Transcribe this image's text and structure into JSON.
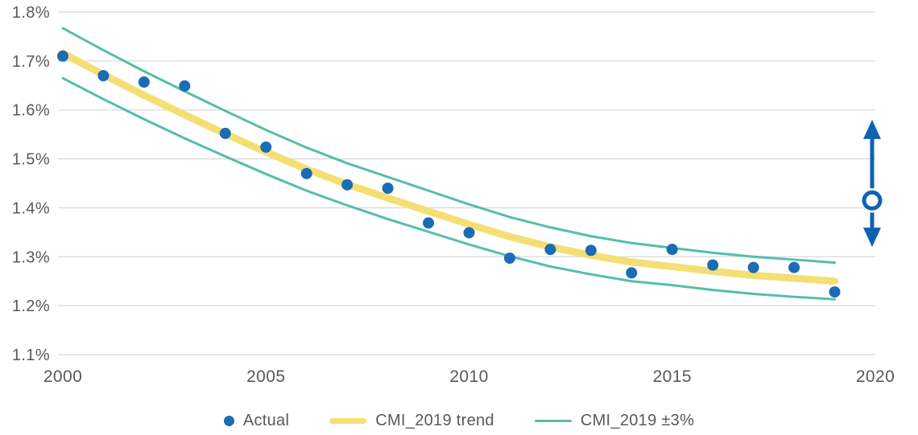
{
  "chart_data": {
    "type": "line",
    "title": "",
    "x": [
      2000,
      2001,
      2002,
      2003,
      2004,
      2005,
      2006,
      2007,
      2008,
      2009,
      2010,
      2011,
      2012,
      2013,
      2014,
      2015,
      2016,
      2017,
      2018,
      2019
    ],
    "xlim": [
      2000,
      2020
    ],
    "ylim": [
      1.1,
      1.8
    ],
    "grid": "horizontal-only",
    "legend_position": "bottom-center",
    "yticks": [
      {
        "value": 1.8,
        "label": "1.8%"
      },
      {
        "value": 1.7,
        "label": "1.7%"
      },
      {
        "value": 1.6,
        "label": "1.6%"
      },
      {
        "value": 1.5,
        "label": "1.5%"
      },
      {
        "value": 1.4,
        "label": "1.4%"
      },
      {
        "value": 1.3,
        "label": "1.3%"
      },
      {
        "value": 1.2,
        "label": "1.2%"
      },
      {
        "value": 1.1,
        "label": "1.1%"
      }
    ],
    "xticks": [
      {
        "value": 2000,
        "label": "2000"
      },
      {
        "value": 2005,
        "label": "2005"
      },
      {
        "value": 2010,
        "label": "2010"
      },
      {
        "value": 2015,
        "label": "2015"
      },
      {
        "value": 2020,
        "label": "2020"
      }
    ],
    "series": [
      {
        "name": "Actual",
        "type": "scatter",
        "color": "#1a6cb4",
        "values": [
          1.71,
          1.67,
          1.657,
          1.649,
          1.552,
          1.524,
          1.47,
          1.447,
          1.44,
          1.369,
          1.349,
          1.297,
          1.315,
          1.313,
          1.267,
          1.315,
          1.283,
          1.278,
          1.278,
          1.228
        ]
      },
      {
        "name": "CMI_2019 trend",
        "type": "line",
        "color": "#f4df74",
        "values": [
          1.716,
          1.672,
          1.63,
          1.59,
          1.551,
          1.514,
          1.479,
          1.448,
          1.42,
          1.393,
          1.366,
          1.341,
          1.32,
          1.303,
          1.289,
          1.28,
          1.27,
          1.262,
          1.256,
          1.25
        ]
      },
      {
        "name": "CMI_2019 ±3%",
        "type": "band",
        "color": "#57bda9",
        "upper": [
          1.767,
          1.722,
          1.679,
          1.638,
          1.598,
          1.559,
          1.523,
          1.491,
          1.463,
          1.435,
          1.407,
          1.381,
          1.36,
          1.342,
          1.328,
          1.318,
          1.308,
          1.3,
          1.294,
          1.288
        ],
        "lower": [
          1.665,
          1.622,
          1.581,
          1.542,
          1.505,
          1.469,
          1.435,
          1.405,
          1.377,
          1.351,
          1.325,
          1.301,
          1.28,
          1.264,
          1.25,
          1.242,
          1.232,
          1.224,
          1.218,
          1.213
        ]
      }
    ],
    "annotation": {
      "type": "double-headed-arrow",
      "x": 2020,
      "top": 1.58,
      "bottom": 1.32,
      "marker": 1.415,
      "color": "#0e63af"
    }
  },
  "legend": {
    "items": [
      {
        "label": "Actual",
        "swatch": "dot",
        "color": "#1a6cb4"
      },
      {
        "label": "CMI_2019 trend",
        "swatch": "thick-line",
        "color": "#f4df74"
      },
      {
        "label": "CMI_2019 ±3%",
        "swatch": "thin-line",
        "color": "#57bda9"
      }
    ]
  },
  "colors": {
    "gridline": "#d9d9d9",
    "axis_text": "#58595b",
    "background": "#ffffff"
  }
}
